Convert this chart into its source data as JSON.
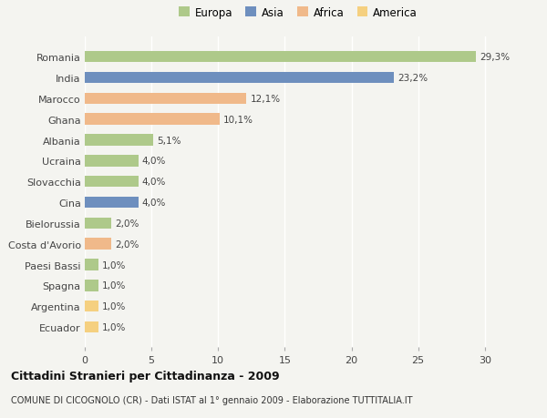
{
  "countries": [
    "Romania",
    "India",
    "Marocco",
    "Ghana",
    "Albania",
    "Ucraina",
    "Slovacchia",
    "Cina",
    "Bielorussia",
    "Costa d'Avorio",
    "Paesi Bassi",
    "Spagna",
    "Argentina",
    "Ecuador"
  ],
  "values": [
    29.3,
    23.2,
    12.1,
    10.1,
    5.1,
    4.0,
    4.0,
    4.0,
    2.0,
    2.0,
    1.0,
    1.0,
    1.0,
    1.0
  ],
  "labels": [
    "29,3%",
    "23,2%",
    "12,1%",
    "10,1%",
    "5,1%",
    "4,0%",
    "4,0%",
    "4,0%",
    "2,0%",
    "2,0%",
    "1,0%",
    "1,0%",
    "1,0%",
    "1,0%"
  ],
  "colors": [
    "#aec98a",
    "#6e8fbe",
    "#f0b98a",
    "#f0b98a",
    "#aec98a",
    "#aec98a",
    "#aec98a",
    "#6e8fbe",
    "#aec98a",
    "#f0b98a",
    "#aec98a",
    "#aec98a",
    "#f5d080",
    "#f5d080"
  ],
  "legend_labels": [
    "Europa",
    "Asia",
    "Africa",
    "America"
  ],
  "legend_colors": [
    "#aec98a",
    "#6e8fbe",
    "#f0b98a",
    "#f5d080"
  ],
  "title": "Cittadini Stranieri per Cittadinanza - 2009",
  "subtitle": "COMUNE DI CICOGNOLO (CR) - Dati ISTAT al 1° gennaio 2009 - Elaborazione TUTTITALIA.IT",
  "xlim": [
    0,
    32
  ],
  "xticks": [
    0,
    5,
    10,
    15,
    20,
    25,
    30
  ],
  "background_color": "#f4f4f0",
  "bar_height": 0.55
}
